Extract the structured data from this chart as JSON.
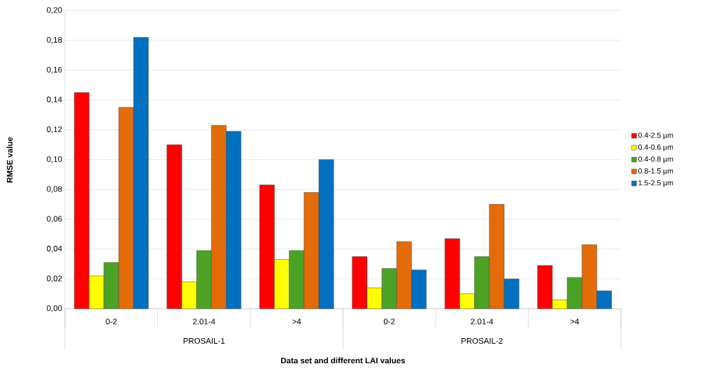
{
  "chart_data": {
    "type": "bar",
    "xlabel": "Data set and different LAI values",
    "ylabel": "RMSE value",
    "categories": [
      "0-2",
      "2.01-4",
      ">4",
      "0-2",
      "2.01-4",
      ">4"
    ],
    "annotations": [
      "PROSAIL-1",
      "PROSAIL-2"
    ],
    "series": [
      {
        "name": "0.4-2.5 µm",
        "color": "#ff0000",
        "values": [
          0.145,
          0.11,
          0.083,
          0.035,
          0.047,
          0.029
        ]
      },
      {
        "name": "0.4-0.6 µm",
        "color": "#ffff00",
        "values": [
          0.022,
          0.018,
          0.033,
          0.014,
          0.01,
          0.006
        ]
      },
      {
        "name": "0.4-0.8 µm",
        "color": "#4ca225",
        "values": [
          0.031,
          0.039,
          0.039,
          0.027,
          0.035,
          0.021
        ]
      },
      {
        "name": "0.8-1.5 µm",
        "color": "#e36c09",
        "values": [
          0.135,
          0.123,
          0.078,
          0.045,
          0.07,
          0.043
        ]
      },
      {
        "name": "1.5-2.5 µm",
        "color": "#0070c0",
        "values": [
          0.182,
          0.119,
          0.1,
          0.026,
          0.02,
          0.012
        ]
      }
    ],
    "ylim": [
      0,
      0.2
    ],
    "yticks": [
      {
        "value": 0,
        "label": "0,00"
      },
      {
        "value": 0.02,
        "label": "0,02"
      },
      {
        "value": 0.04,
        "label": "0,04"
      },
      {
        "value": 0.06,
        "label": "0,06"
      },
      {
        "value": 0.08,
        "label": "0,08"
      },
      {
        "value": 0.1,
        "label": "0,10"
      },
      {
        "value": 0.12,
        "label": "0,12"
      },
      {
        "value": 0.14,
        "label": "0,14"
      },
      {
        "value": 0.16,
        "label": "0,16"
      },
      {
        "value": 0.18,
        "label": "0,18"
      },
      {
        "value": 0.2,
        "label": "0,20"
      }
    ],
    "grid": "y",
    "legend": "right"
  }
}
